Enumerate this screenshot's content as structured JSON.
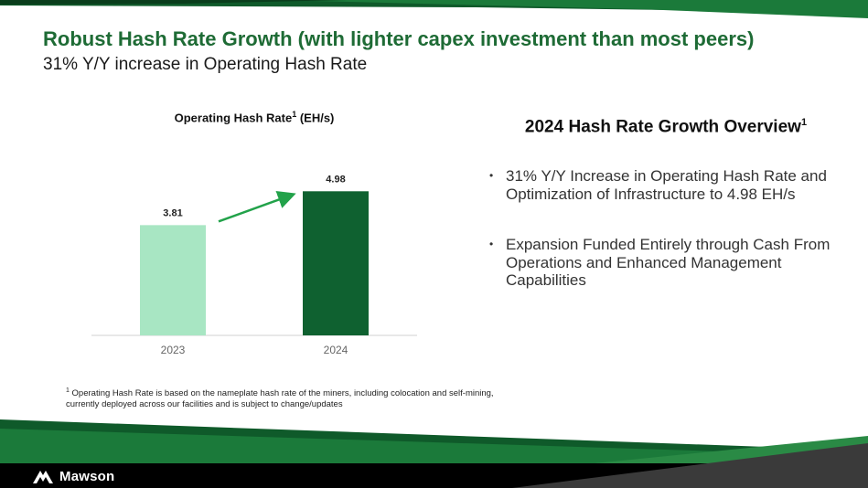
{
  "slide": {
    "title": "Robust Hash Rate Growth (with lighter capex investment than most peers)",
    "subtitle": "31% Y/Y increase in Operating Hash Rate"
  },
  "chart_data": {
    "type": "bar",
    "title": "Operating Hash Rate",
    "title_sup": "1",
    "title_unit": " (EH/s)",
    "categories": [
      "2023",
      "2024"
    ],
    "values": [
      3.81,
      4.98
    ],
    "value_labels": [
      "3.81",
      "4.98"
    ],
    "bar_colors": [
      "#a8e6c3",
      "#0f6130"
    ],
    "arrow_color": "#22a24a",
    "ylim": [
      0,
      6
    ],
    "grid": false,
    "legend": "none"
  },
  "footnote": {
    "sup": "1",
    "text": " Operating Hash Rate is based on the nameplate hash rate of the miners, including colocation and self-mining, currently deployed across our facilities and is subject to change/updates"
  },
  "overview": {
    "title": "2024 Hash Rate Growth Overview",
    "title_sup": "1",
    "bullets": [
      "31% Y/Y Increase in Operating Hash Rate and Optimization of Infrastructure to 4.98 EH/s",
      "Expansion Funded Entirely through Cash From Operations and Enhanced Management Capabilities"
    ]
  },
  "brand": {
    "name": "Mawson",
    "logo_icon": "mountain-logo-icon",
    "primary_color": "#1e6b35",
    "dark_green": "#0f5a2a"
  }
}
